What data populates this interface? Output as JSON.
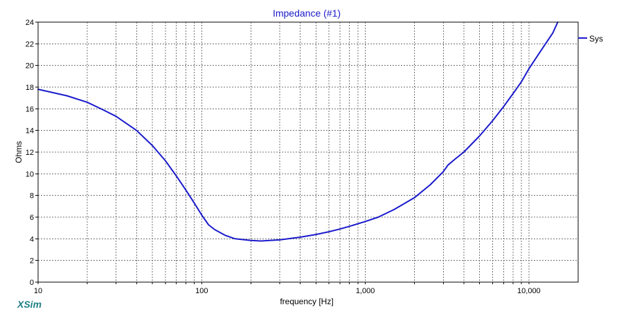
{
  "app": {
    "logo_text": "XSim"
  },
  "chart_data": {
    "type": "line",
    "title": "Impedance (#1)",
    "xlabel": "frequency [Hz]",
    "ylabel": "Ohms",
    "x_scale": "log",
    "xlim": [
      10,
      20000
    ],
    "ylim": [
      0,
      24
    ],
    "grid": true,
    "legend": "right",
    "x_tick_labels": [
      {
        "value": 10,
        "label": "10"
      },
      {
        "value": 100,
        "label": "100"
      },
      {
        "value": 1000,
        "label": "1,000"
      },
      {
        "value": 10000,
        "label": "10,000"
      }
    ],
    "x_minor_gridlines": [
      20,
      30,
      40,
      50,
      60,
      70,
      80,
      90,
      200,
      300,
      400,
      500,
      600,
      700,
      800,
      900,
      2000,
      3000,
      4000,
      5000,
      6000,
      7000,
      8000,
      9000
    ],
    "y_ticks": [
      0,
      2,
      4,
      6,
      8,
      10,
      12,
      14,
      16,
      18,
      20,
      22,
      24
    ],
    "colors": {
      "title": "#1a1acc",
      "series": "#1a1acc",
      "logo": "#1f7f84",
      "grid": "#707070",
      "axis": "#000000"
    },
    "series": [
      {
        "name": "Sys",
        "x": [
          10,
          15,
          20,
          25,
          30,
          40,
          50,
          60,
          70,
          80,
          90,
          100,
          110,
          120,
          140,
          160,
          200,
          230,
          300,
          400,
          500,
          600,
          700,
          800,
          1000,
          1200,
          1500,
          2000,
          2500,
          3000,
          3200,
          3500,
          4000,
          5000,
          6000,
          7000,
          8000,
          9000,
          10000,
          12000,
          14000,
          15000
        ],
        "y": [
          17.8,
          17.2,
          16.6,
          15.9,
          15.3,
          14.0,
          12.6,
          11.2,
          9.8,
          8.5,
          7.3,
          6.2,
          5.3,
          4.85,
          4.3,
          4.0,
          3.85,
          3.8,
          3.9,
          4.15,
          4.4,
          4.65,
          4.9,
          5.15,
          5.6,
          6.0,
          6.7,
          7.8,
          9.0,
          10.2,
          10.8,
          11.3,
          12.0,
          13.5,
          14.9,
          16.2,
          17.4,
          18.5,
          19.7,
          21.5,
          23.0,
          24.0
        ]
      }
    ]
  }
}
